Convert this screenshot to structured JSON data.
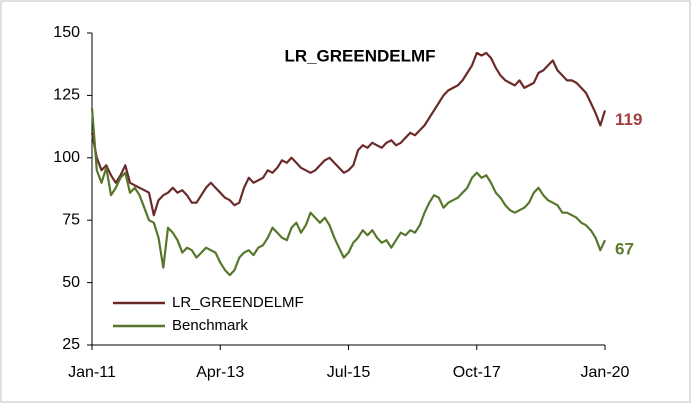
{
  "chart_data": {
    "type": "line",
    "title": "LR_GREENDELMF",
    "categories": [
      "Jan-11",
      "Feb-11",
      "Mar-11",
      "Apr-11",
      "May-11",
      "Jun-11",
      "Jul-11",
      "Aug-11",
      "Sep-11",
      "Oct-11",
      "Nov-11",
      "Dec-11",
      "Jan-12",
      "Feb-12",
      "Mar-12",
      "Apr-12",
      "May-12",
      "Jun-12",
      "Jul-12",
      "Aug-12",
      "Sep-12",
      "Oct-12",
      "Nov-12",
      "Dec-12",
      "Jan-13",
      "Feb-13",
      "Mar-13",
      "Apr-13",
      "May-13",
      "Jun-13",
      "Jul-13",
      "Aug-13",
      "Sep-13",
      "Oct-13",
      "Nov-13",
      "Dec-13",
      "Jan-14",
      "Feb-14",
      "Mar-14",
      "Apr-14",
      "May-14",
      "Jun-14",
      "Jul-14",
      "Aug-14",
      "Sep-14",
      "Oct-14",
      "Nov-14",
      "Dec-14",
      "Jan-15",
      "Feb-15",
      "Mar-15",
      "Apr-15",
      "May-15",
      "Jun-15",
      "Jul-15",
      "Aug-15",
      "Sep-15",
      "Oct-15",
      "Nov-15",
      "Dec-15",
      "Jan-16",
      "Feb-16",
      "Mar-16",
      "Apr-16",
      "May-16",
      "Jun-16",
      "Jul-16",
      "Aug-16",
      "Sep-16",
      "Oct-16",
      "Nov-16",
      "Dec-16",
      "Jan-17",
      "Feb-17",
      "Mar-17",
      "Apr-17",
      "May-17",
      "Jun-17",
      "Jul-17",
      "Aug-17",
      "Sep-17",
      "Oct-17",
      "Nov-17",
      "Dec-17",
      "Jan-18",
      "Feb-18",
      "Mar-18",
      "Apr-18",
      "May-18",
      "Jun-18",
      "Jul-18",
      "Aug-18",
      "Sep-18",
      "Oct-18",
      "Nov-18",
      "Dec-18",
      "Jan-19",
      "Feb-19",
      "Mar-19",
      "Apr-19",
      "May-19",
      "Jun-19",
      "Jul-19",
      "Aug-19",
      "Sep-19",
      "Oct-19",
      "Nov-19",
      "Dec-19",
      "Jan-20"
    ],
    "xticks": [
      "Jan-11",
      "Apr-13",
      "Jul-15",
      "Oct-17",
      "Jan-20"
    ],
    "series": [
      {
        "name": "LR_GREENDELMF",
        "color": "#6b2a2a",
        "label_color": "#a0413f",
        "values": [
          110,
          100,
          95,
          97,
          93,
          90,
          93,
          97,
          90,
          89,
          88,
          87,
          86,
          77,
          83,
          85,
          86,
          88,
          86,
          87,
          85,
          82,
          82,
          85,
          88,
          90,
          88,
          86,
          84,
          83,
          81,
          82,
          88,
          92,
          90,
          91,
          92,
          95,
          94,
          96,
          99,
          98,
          100,
          98,
          96,
          95,
          94,
          95,
          97,
          99,
          100,
          98,
          96,
          94,
          95,
          97,
          103,
          105,
          104,
          106,
          105,
          104,
          106,
          107,
          105,
          106,
          108,
          110,
          109,
          111,
          113,
          116,
          119,
          122,
          125,
          127,
          128,
          129,
          131,
          134,
          137,
          142,
          141,
          142,
          140,
          136,
          133,
          131,
          130,
          129,
          131,
          128,
          129,
          130,
          134,
          135,
          137,
          139,
          135,
          133,
          131,
          131,
          130,
          128,
          126,
          122,
          118,
          113,
          119
        ]
      },
      {
        "name": "Benchmark",
        "color": "#56772b",
        "label_color": "#5d7d2f",
        "values": [
          120,
          95,
          90,
          96,
          85,
          88,
          92,
          94,
          86,
          88,
          85,
          80,
          75,
          74,
          68,
          56,
          72,
          70,
          67,
          62,
          64,
          63,
          60,
          62,
          64,
          63,
          62,
          58,
          55,
          53,
          55,
          60,
          62,
          63,
          61,
          64,
          65,
          68,
          72,
          70,
          68,
          67,
          72,
          74,
          70,
          73,
          78,
          76,
          74,
          76,
          73,
          68,
          64,
          60,
          62,
          66,
          68,
          71,
          69,
          71,
          68,
          66,
          67,
          64,
          67,
          70,
          69,
          71,
          70,
          73,
          78,
          82,
          85,
          84,
          80,
          82,
          83,
          84,
          86,
          88,
          92,
          94,
          92,
          93,
          90,
          86,
          84,
          81,
          79,
          78,
          79,
          80,
          82,
          86,
          88,
          85,
          83,
          82,
          81,
          78,
          78,
          77,
          76,
          74,
          73,
          71,
          68,
          63,
          67
        ]
      }
    ],
    "ylim": [
      25,
      150
    ],
    "yticks": [
      25,
      50,
      75,
      100,
      125,
      150
    ],
    "legend": "lower-left"
  }
}
